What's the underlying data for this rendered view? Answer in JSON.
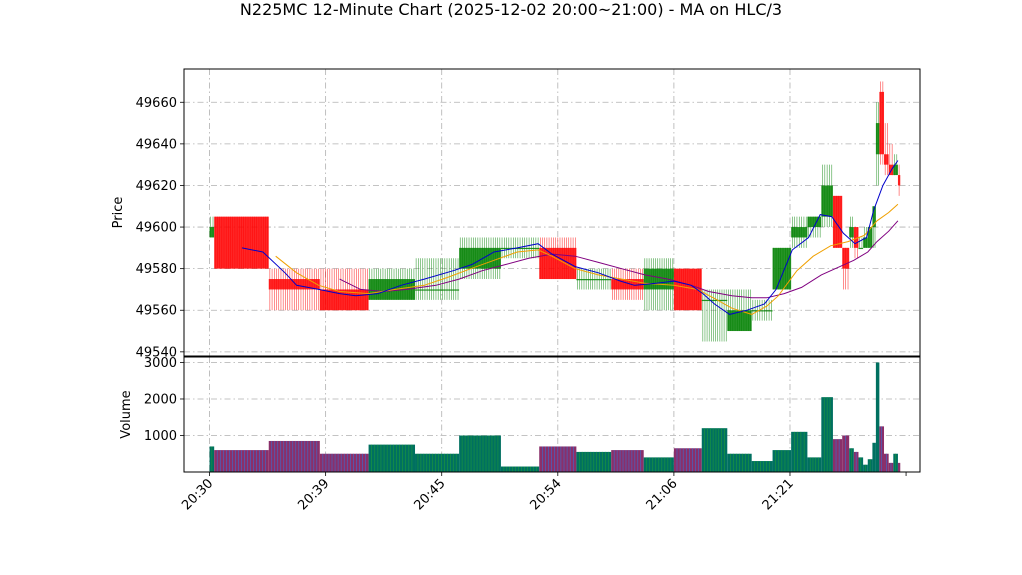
{
  "chart_data": {
    "title": "N225MC 12-Minute Chart (2025-12-02 20:00~21:00) - MA on HLC/3",
    "type": "candlestick",
    "price_panel": {
      "ylabel": "Price",
      "ylim": [
        49538,
        49676
      ],
      "yticks": [
        49540,
        49560,
        49580,
        49600,
        49620,
        49640,
        49660
      ]
    },
    "volume_panel": {
      "ylabel": "Volume",
      "ylim": [
        0,
        3150
      ],
      "yticks": [
        1000,
        2000,
        3000
      ]
    },
    "x_ticks": [
      "20:30",
      "20:39",
      "20:45",
      "20:54",
      "21:06",
      "21:21"
    ],
    "x_tick_positions": [
      0,
      10,
      20,
      30,
      40,
      50
    ],
    "grid": true,
    "colors": {
      "up": "#008000",
      "down": "#ff0000",
      "volume_up": "#007060",
      "volume_down": "#8a2f6a",
      "ma_fast": "#0000cc",
      "ma_mid": "#f0a000",
      "ma_slow": "#800080"
    },
    "bars": [
      {
        "t": 0.0,
        "w": 0.4,
        "o": 49595,
        "h": 49605,
        "l": 49595,
        "c": 49600,
        "v": 700
      },
      {
        "t": 0.4,
        "w": 4.7,
        "o": 49605,
        "h": 49605,
        "l": 49580,
        "c": 49580,
        "v": 600
      },
      {
        "t": 5.1,
        "w": 4.4,
        "o": 49575,
        "h": 49580,
        "l": 49560,
        "c": 49570,
        "v": 850
      },
      {
        "t": 9.5,
        "w": 4.2,
        "o": 49570,
        "h": 49580,
        "l": 49560,
        "c": 49560,
        "v": 500
      },
      {
        "t": 13.7,
        "w": 4.0,
        "o": 49565,
        "h": 49580,
        "l": 49565,
        "c": 49575,
        "v": 750
      },
      {
        "t": 17.7,
        "w": 3.8,
        "o": 49570,
        "h": 49585,
        "l": 49565,
        "c": 49570,
        "v": 500
      },
      {
        "t": 21.5,
        "w": 3.6,
        "o": 49580,
        "h": 49595,
        "l": 49575,
        "c": 49590,
        "v": 1000
      },
      {
        "t": 25.1,
        "w": 3.3,
        "o": 49590,
        "h": 49595,
        "l": 49585,
        "c": 49590,
        "v": 150
      },
      {
        "t": 28.4,
        "w": 3.2,
        "o": 49590,
        "h": 49595,
        "l": 49575,
        "c": 49575,
        "v": 700
      },
      {
        "t": 31.6,
        "w": 3.0,
        "o": 49575,
        "h": 49580,
        "l": 49570,
        "c": 49575,
        "v": 550
      },
      {
        "t": 34.6,
        "w": 2.8,
        "o": 49575,
        "h": 49580,
        "l": 49565,
        "c": 49570,
        "v": 600
      },
      {
        "t": 37.4,
        "w": 2.6,
        "o": 49570,
        "h": 49585,
        "l": 49560,
        "c": 49580,
        "v": 400
      },
      {
        "t": 40.0,
        "w": 2.4,
        "o": 49580,
        "h": 49580,
        "l": 49560,
        "c": 49560,
        "v": 650
      },
      {
        "t": 42.4,
        "w": 2.2,
        "o": 49565,
        "h": 49570,
        "l": 49545,
        "c": 49565,
        "v": 1200
      },
      {
        "t": 44.6,
        "w": 2.1,
        "o": 49550,
        "h": 49570,
        "l": 49550,
        "c": 49560,
        "v": 500
      },
      {
        "t": 46.7,
        "w": 1.8,
        "o": 49560,
        "h": 49565,
        "l": 49555,
        "c": 49560,
        "v": 300
      },
      {
        "t": 48.5,
        "w": 1.6,
        "o": 49570,
        "h": 49590,
        "l": 49570,
        "c": 49590,
        "v": 600
      },
      {
        "t": 50.1,
        "w": 1.4,
        "o": 49595,
        "h": 49605,
        "l": 49590,
        "c": 49600,
        "v": 1100
      },
      {
        "t": 51.5,
        "w": 1.2,
        "o": 49600,
        "h": 49605,
        "l": 49595,
        "c": 49605,
        "v": 400
      },
      {
        "t": 52.7,
        "w": 1.0,
        "o": 49605,
        "h": 49630,
        "l": 49600,
        "c": 49620,
        "v": 2050
      },
      {
        "t": 53.7,
        "w": 0.8,
        "o": 49615,
        "h": 49615,
        "l": 49590,
        "c": 49590,
        "v": 900
      },
      {
        "t": 54.5,
        "w": 0.6,
        "o": 49590,
        "h": 49590,
        "l": 49570,
        "c": 49580,
        "v": 1000
      },
      {
        "t": 55.1,
        "w": 0.4,
        "o": 49595,
        "h": 49605,
        "l": 49590,
        "c": 49600,
        "v": 650
      },
      {
        "t": 55.5,
        "w": 0.4,
        "o": 49600,
        "h": 49600,
        "l": 49585,
        "c": 49590,
        "v": 550
      },
      {
        "t": 55.9,
        "w": 0.4,
        "o": 49590,
        "h": 49595,
        "l": 49590,
        "c": 49590,
        "v": 400
      },
      {
        "t": 56.3,
        "w": 0.4,
        "o": 49590,
        "h": 49600,
        "l": 49590,
        "c": 49595,
        "v": 200
      },
      {
        "t": 56.7,
        "w": 0.4,
        "o": 49590,
        "h": 49600,
        "l": 49590,
        "c": 49600,
        "v": 350
      },
      {
        "t": 57.1,
        "w": 0.3,
        "o": 49600,
        "h": 49610,
        "l": 49590,
        "c": 49610,
        "v": 800
      },
      {
        "t": 57.4,
        "w": 0.3,
        "o": 49635,
        "h": 49660,
        "l": 49620,
        "c": 49650,
        "v": 3000
      },
      {
        "t": 57.7,
        "w": 0.4,
        "o": 49665,
        "h": 49670,
        "l": 49630,
        "c": 49635,
        "v": 1250
      },
      {
        "t": 58.1,
        "w": 0.4,
        "o": 49635,
        "h": 49650,
        "l": 49625,
        "c": 49630,
        "v": 500
      },
      {
        "t": 58.5,
        "w": 0.4,
        "o": 49630,
        "h": 49640,
        "l": 49625,
        "c": 49625,
        "v": 250
      },
      {
        "t": 58.9,
        "w": 0.4,
        "o": 49625,
        "h": 49635,
        "l": 49625,
        "c": 49630,
        "v": 500
      },
      {
        "t": 59.3,
        "w": 0.2,
        "o": 49625,
        "h": 49630,
        "l": 49615,
        "c": 49620,
        "v": 250
      }
    ],
    "ma_fast": [
      [
        2.8,
        49590
      ],
      [
        4.6,
        49588
      ],
      [
        6.5,
        49578
      ],
      [
        7.5,
        49572
      ],
      [
        9.4,
        49570
      ],
      [
        11.2,
        49568
      ],
      [
        12.6,
        49567
      ],
      [
        14.5,
        49568
      ],
      [
        16.5,
        49572
      ],
      [
        18.5,
        49575
      ],
      [
        21.0,
        49579
      ],
      [
        22.6,
        49582
      ],
      [
        24.5,
        49588
      ],
      [
        26.5,
        49590
      ],
      [
        28.3,
        49592
      ],
      [
        29.5,
        49587
      ],
      [
        31.5,
        49581
      ],
      [
        33.5,
        49578
      ],
      [
        35.4,
        49574
      ],
      [
        36.6,
        49572
      ],
      [
        38.5,
        49573
      ],
      [
        40.0,
        49574
      ],
      [
        41.5,
        49572
      ],
      [
        42.5,
        49568
      ],
      [
        43.5,
        49563
      ],
      [
        44.8,
        49558
      ],
      [
        46.3,
        49560
      ],
      [
        47.8,
        49563
      ],
      [
        48.8,
        49570
      ],
      [
        50.2,
        49589
      ],
      [
        51.6,
        49595
      ],
      [
        52.6,
        49606
      ],
      [
        53.6,
        49605
      ],
      [
        54.6,
        49597
      ],
      [
        55.6,
        49592
      ],
      [
        56.6,
        49595
      ],
      [
        57.2,
        49608
      ],
      [
        58.0,
        49620
      ],
      [
        58.8,
        49628
      ],
      [
        59.3,
        49632
      ]
    ],
    "ma_mid": [
      [
        5.7,
        49586
      ],
      [
        7.5,
        49578
      ],
      [
        9.4,
        49572
      ],
      [
        11.2,
        49569
      ],
      [
        13.7,
        49568
      ],
      [
        16.0,
        49570
      ],
      [
        18.5,
        49572
      ],
      [
        20.6,
        49576
      ],
      [
        22.5,
        49580
      ],
      [
        24.5,
        49584
      ],
      [
        26.5,
        49588
      ],
      [
        28.3,
        49589
      ],
      [
        29.5,
        49586
      ],
      [
        31.5,
        49580
      ],
      [
        33.5,
        49577
      ],
      [
        35.5,
        49575
      ],
      [
        37.5,
        49573
      ],
      [
        40.0,
        49572
      ],
      [
        42.0,
        49570
      ],
      [
        43.4,
        49566
      ],
      [
        45.0,
        49561
      ],
      [
        46.7,
        49558
      ],
      [
        48.0,
        49562
      ],
      [
        49.0,
        49567
      ],
      [
        50.6,
        49579
      ],
      [
        52.0,
        49586
      ],
      [
        53.5,
        49591
      ],
      [
        55.0,
        49593
      ],
      [
        56.4,
        49596
      ],
      [
        57.5,
        49603
      ],
      [
        58.5,
        49607
      ],
      [
        59.3,
        49611
      ]
    ],
    "ma_slow": [
      [
        11.2,
        49575
      ],
      [
        13.0,
        49570
      ],
      [
        15.0,
        49569
      ],
      [
        17.0,
        49570
      ],
      [
        19.5,
        49572
      ],
      [
        21.5,
        49575
      ],
      [
        23.5,
        49579
      ],
      [
        25.5,
        49582
      ],
      [
        27.5,
        49585
      ],
      [
        29.5,
        49587
      ],
      [
        31.5,
        49586
      ],
      [
        33.5,
        49583
      ],
      [
        35.5,
        49580
      ],
      [
        37.5,
        49577
      ],
      [
        39.5,
        49575
      ],
      [
        41.5,
        49572
      ],
      [
        43.0,
        49569
      ],
      [
        45.0,
        49567
      ],
      [
        46.7,
        49566
      ],
      [
        48.0,
        49566
      ],
      [
        49.5,
        49568
      ],
      [
        51.0,
        49571
      ],
      [
        52.7,
        49577
      ],
      [
        54.3,
        49581
      ],
      [
        55.5,
        49584
      ],
      [
        56.7,
        49588
      ],
      [
        57.5,
        49593
      ],
      [
        58.5,
        49598
      ],
      [
        59.3,
        49603
      ]
    ]
  }
}
